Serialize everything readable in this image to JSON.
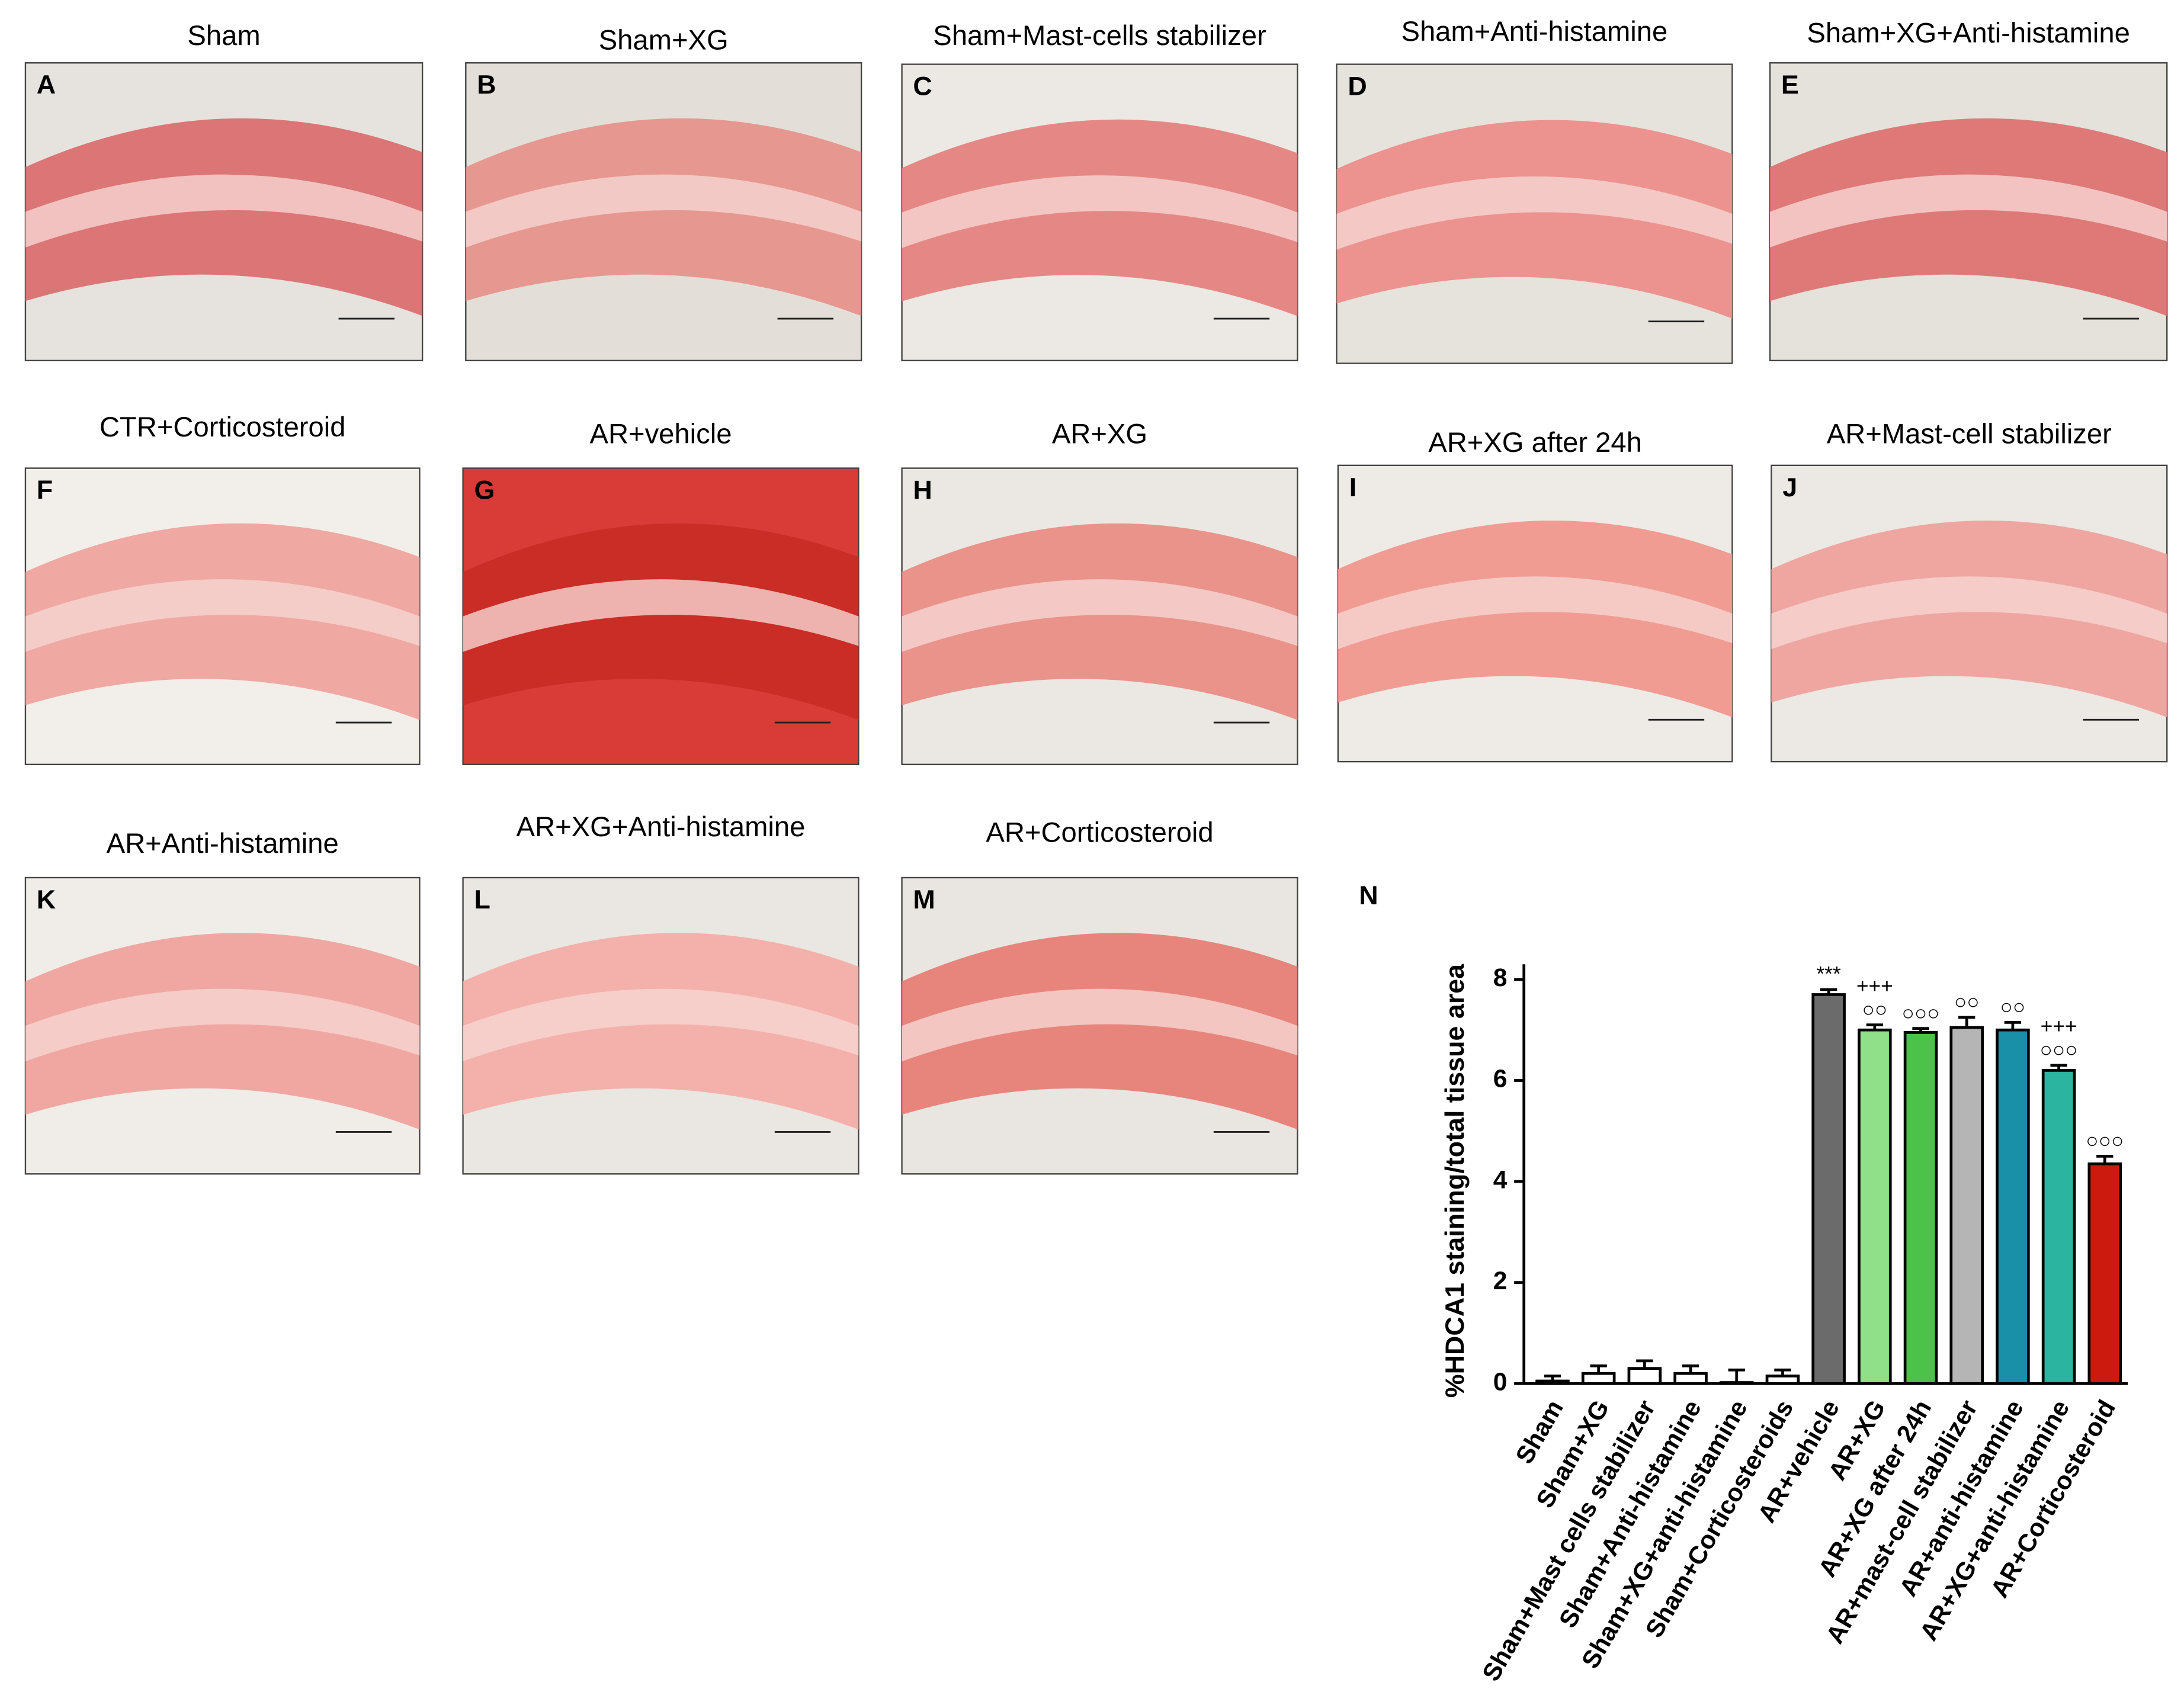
{
  "panels": [
    {
      "letter": "A",
      "title": "Sham"
    },
    {
      "letter": "B",
      "title": "Sham+XG"
    },
    {
      "letter": "C",
      "title": "Sham+Mast-cells stabilizer"
    },
    {
      "letter": "D",
      "title": "Sham+Anti-histamine"
    },
    {
      "letter": "E",
      "title": "Sham+XG+Anti-histamine"
    },
    {
      "letter": "F",
      "title": "CTR+Corticosteroid"
    },
    {
      "letter": "G",
      "title": "AR+vehicle"
    },
    {
      "letter": "H",
      "title": "AR+XG"
    },
    {
      "letter": "I",
      "title": "AR+XG after 24h"
    },
    {
      "letter": "J",
      "title": "AR+Mast-cell stabilizer"
    },
    {
      "letter": "K",
      "title": "AR+Anti-histamine"
    },
    {
      "letter": "L",
      "title": "AR+XG+Anti-histamine"
    },
    {
      "letter": "M",
      "title": "AR+Corticosteroid"
    }
  ],
  "chart_data": {
    "type": "bar",
    "panel_letter": "N",
    "ylabel": "%HDCA1 staining/total tissue area",
    "categories": [
      "Sham",
      "Sham+XG",
      "Sham+Mast cells stabilizer",
      "Sham+Anti-histamine",
      "Sham+XG+anti-histamine",
      "Sham+Corticosteroids",
      "AR+vehicle",
      "AR+XG",
      "AR+XG after 24h",
      "AR+mast-cell stabilizer",
      "AR+anti-histamine",
      "AR+XG+anti-histamine",
      "AR+Corticosteroid"
    ],
    "values": [
      0.05,
      0.2,
      0.3,
      0.2,
      0.02,
      0.15,
      7.7,
      7.0,
      6.95,
      7.05,
      7.0,
      6.2,
      4.35
    ],
    "errors": [
      0.1,
      0.15,
      0.15,
      0.15,
      0.25,
      0.12,
      0.1,
      0.1,
      0.08,
      0.2,
      0.15,
      0.1,
      0.15
    ],
    "colors": [
      "#ffffff",
      "#ffffff",
      "#ffffff",
      "#ffffff",
      "#ffffff",
      "#ffffff",
      "#6b6b6b",
      "#90e08a",
      "#4cc24a",
      "#b5b5b5",
      "#1a8fa8",
      "#2bb5a0",
      "#cc1a0e"
    ],
    "annotations": [
      null,
      null,
      null,
      null,
      null,
      null,
      [
        "***"
      ],
      [
        "+++",
        "○○"
      ],
      [
        "○○○"
      ],
      [
        "○○"
      ],
      [
        "○○"
      ],
      [
        "+++",
        "○○○"
      ],
      [
        "○○○"
      ]
    ],
    "ylim": [
      0,
      8.3
    ],
    "yticks": [
      0,
      2,
      4,
      6,
      8
    ],
    "grid": false
  }
}
